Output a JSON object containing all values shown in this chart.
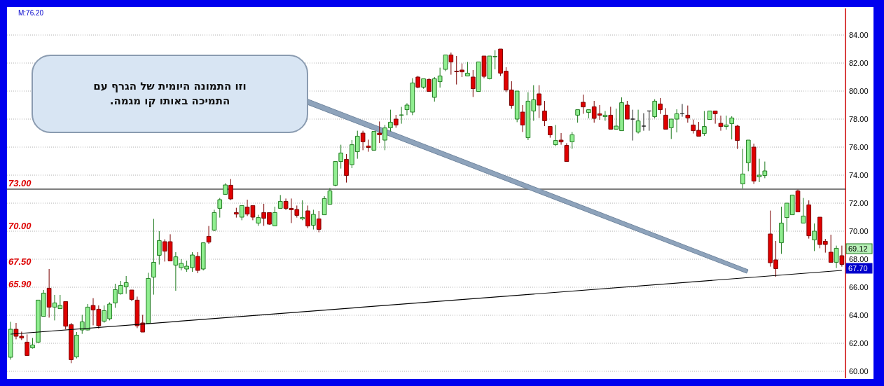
{
  "chart_data": {
    "type": "candlestick",
    "categories": [
      null,
      null,
      null,
      null,
      null,
      null,
      null,
      null,
      null,
      null,
      null,
      null,
      null,
      null,
      null,
      null,
      null,
      null,
      null,
      null,
      null,
      null,
      null,
      null,
      null,
      null,
      null,
      null,
      null,
      null,
      null,
      null,
      null,
      null,
      null,
      null,
      null,
      null,
      null,
      null,
      null,
      null,
      null,
      null,
      null,
      null,
      null,
      null,
      null,
      null,
      null,
      null,
      null,
      null,
      null,
      null,
      null,
      null,
      null,
      null,
      null,
      null,
      null,
      null,
      null,
      null,
      null,
      null,
      null,
      null,
      null,
      null,
      null,
      null,
      null,
      null,
      null,
      null,
      null,
      null,
      null,
      null,
      null,
      null,
      null,
      null,
      null,
      null,
      null,
      null,
      null,
      null,
      null,
      null,
      null,
      null,
      null,
      null,
      null,
      null,
      null,
      null,
      null,
      null,
      null,
      null,
      null,
      null,
      null,
      null,
      null,
      null,
      null,
      null,
      null,
      null,
      null,
      null,
      null,
      null,
      null,
      null,
      null,
      null,
      null,
      null,
      null,
      null,
      null,
      null,
      null,
      null,
      null,
      null,
      null,
      null,
      null,
      null,
      null,
      null,
      null,
      null,
      null,
      null,
      null,
      null,
      null,
      null,
      null,
      null,
      null,
      null
    ],
    "ohlc": [
      [
        61.0,
        63.53,
        60.83,
        63.0
      ],
      [
        63.0,
        63.45,
        62.28,
        62.5
      ],
      [
        62.5,
        62.83,
        62.23,
        62.38
      ],
      [
        62.08,
        62.63,
        61.13,
        61.13
      ],
      [
        61.67,
        62.38,
        61.62,
        61.88
      ],
      [
        62.08,
        65.08,
        62.03,
        65.08
      ],
      [
        63.92,
        65.8,
        63.92,
        65.58
      ],
      [
        65.93,
        67.3,
        63.83,
        64.58
      ],
      [
        64.58,
        65.45,
        63.63,
        64.88
      ],
      [
        64.47,
        65.45,
        64.47,
        64.7
      ],
      [
        64.98,
        64.98,
        63.0,
        63.22
      ],
      [
        63.33,
        63.45,
        60.58,
        60.83
      ],
      [
        61.03,
        62.8,
        60.92,
        62.58
      ],
      [
        62.95,
        64.03,
        62.67,
        63.53
      ],
      [
        62.95,
        64.8,
        62.92,
        64.58
      ],
      [
        64.7,
        65.22,
        63.28,
        64.38
      ],
      [
        64.43,
        64.7,
        63.05,
        63.25
      ],
      [
        63.58,
        64.7,
        63.47,
        64.33
      ],
      [
        63.75,
        64.92,
        63.63,
        64.8
      ],
      [
        64.88,
        66.25,
        64.53,
        65.83
      ],
      [
        65.53,
        66.45,
        65.47,
        66.13
      ],
      [
        66.03,
        66.8,
        65.53,
        66.33
      ],
      [
        65.8,
        65.8,
        65.0,
        65.13
      ],
      [
        65.08,
        65.33,
        63.08,
        63.25
      ],
      [
        63.45,
        64.03,
        62.8,
        62.8
      ],
      [
        63.42,
        67.03,
        63.42,
        66.63
      ],
      [
        66.72,
        70.88,
        65.47,
        67.78
      ],
      [
        68.28,
        70.0,
        67.62,
        69.33
      ],
      [
        69.25,
        69.42,
        67.83,
        68.58
      ],
      [
        69.25,
        69.78,
        67.88,
        67.88
      ],
      [
        67.58,
        68.5,
        65.75,
        68.17
      ],
      [
        67.4,
        68.0,
        67.2,
        67.7
      ],
      [
        67.3,
        67.9,
        67.1,
        67.5
      ],
      [
        67.4,
        68.5,
        67.1,
        68.3
      ],
      [
        68.2,
        68.5,
        67.0,
        67.2
      ],
      [
        67.3,
        69.2,
        67.2,
        69.17
      ],
      [
        69.63,
        70.37,
        69.1,
        69.22
      ],
      [
        70.08,
        71.53,
        70.0,
        71.33
      ],
      [
        71.63,
        72.37,
        70.97,
        72.25
      ],
      [
        72.63,
        73.42,
        72.6,
        73.3
      ],
      [
        73.28,
        73.72,
        72.22,
        72.3
      ],
      [
        71.33,
        71.67,
        70.97,
        71.22
      ],
      [
        71.0,
        71.83,
        70.78,
        71.83
      ],
      [
        71.72,
        72.25,
        71.08,
        71.22
      ],
      [
        71.83,
        71.83,
        70.78,
        71.0
      ],
      [
        70.58,
        71.17,
        70.38,
        70.97
      ],
      [
        71.33,
        71.95,
        70.38,
        70.92
      ],
      [
        71.33,
        71.33,
        70.47,
        70.5
      ],
      [
        70.38,
        71.75,
        70.38,
        71.33
      ],
      [
        71.63,
        72.58,
        71.63,
        72.13
      ],
      [
        72.13,
        72.33,
        71.5,
        71.63
      ],
      [
        71.63,
        72.33,
        70.58,
        71.53
      ],
      [
        71.55,
        71.83,
        70.97,
        71.13
      ],
      [
        70.88,
        72.2,
        70.78,
        70.98
      ],
      [
        71.45,
        71.83,
        70.22,
        70.37
      ],
      [
        70.42,
        71.53,
        70.12,
        71.2
      ],
      [
        70.88,
        71.45,
        69.92,
        70.13
      ],
      [
        71.17,
        72.5,
        71.17,
        72.33
      ],
      [
        71.92,
        73.08,
        71.92,
        72.88
      ],
      [
        73.28,
        74.97,
        73.2,
        74.97
      ],
      [
        74.97,
        76.17,
        74.47,
        75.58
      ],
      [
        75.13,
        75.5,
        73.47,
        73.97
      ],
      [
        74.75,
        76.5,
        74.5,
        76.17
      ],
      [
        75.67,
        77.17,
        75.17,
        76.78
      ],
      [
        77.0,
        77.17,
        75.78,
        76.38
      ],
      [
        76.08,
        76.53,
        75.67,
        75.97
      ],
      [
        75.78,
        77.12,
        75.78,
        77.12
      ],
      [
        77.0,
        77.83,
        76.3,
        76.88
      ],
      [
        76.5,
        77.58,
        75.78,
        77.37
      ],
      [
        77.38,
        78.67,
        77.12,
        77.78
      ],
      [
        78.0,
        78.3,
        77.38,
        77.58
      ],
      [
        78.28,
        78.87,
        77.67,
        78.3
      ],
      [
        78.67,
        79.13,
        78.28,
        79.0
      ],
      [
        78.5,
        80.92,
        78.28,
        80.58
      ],
      [
        81.0,
        81.08,
        80.2,
        80.28
      ],
      [
        80.28,
        80.88,
        80.17,
        80.88
      ],
      [
        80.83,
        80.92,
        79.97,
        79.97
      ],
      [
        79.55,
        81.0,
        79.25,
        80.88
      ],
      [
        80.67,
        81.67,
        80.25,
        81.08
      ],
      [
        81.55,
        82.58,
        81.42,
        82.58
      ],
      [
        82.58,
        82.75,
        81.17,
        82.08
      ],
      [
        81.42,
        82.5,
        80.47,
        81.38
      ],
      [
        81.5,
        81.97,
        81.0,
        81.37
      ],
      [
        81.08,
        82.08,
        81.05,
        81.28
      ],
      [
        81.0,
        81.5,
        79.58,
        80.17
      ],
      [
        79.97,
        82.08,
        79.97,
        82.08
      ],
      [
        82.5,
        82.5,
        80.92,
        81.05
      ],
      [
        80.88,
        82.5,
        80.83,
        82.5
      ],
      [
        82.45,
        82.92,
        81.55,
        82.47
      ],
      [
        83.0,
        83.0,
        81.08,
        81.28
      ],
      [
        81.42,
        81.7,
        79.92,
        80.08
      ],
      [
        80.08,
        80.7,
        78.75,
        78.97
      ],
      [
        78.0,
        80.0,
        77.78,
        80.0
      ],
      [
        78.5,
        79.0,
        77.08,
        77.58
      ],
      [
        76.67,
        79.92,
        76.5,
        79.28
      ],
      [
        78.58,
        80.42,
        77.88,
        79.38
      ],
      [
        79.8,
        80.42,
        78.08,
        79.0
      ],
      [
        78.58,
        79.3,
        77.5,
        77.88
      ],
      [
        77.47,
        77.47,
        76.67,
        76.88
      ],
      [
        76.17,
        77.58,
        76.08,
        76.47
      ],
      [
        76.5,
        77.0,
        76.17,
        76.37
      ],
      [
        76.12,
        76.28,
        74.97,
        74.97
      ],
      [
        76.38,
        77.08,
        75.88,
        76.88
      ],
      [
        78.28,
        78.67,
        77.75,
        78.67
      ],
      [
        79.2,
        79.75,
        78.38,
        78.87
      ],
      [
        78.47,
        78.67,
        78.05,
        78.67
      ],
      [
        78.88,
        79.3,
        77.75,
        78.05
      ],
      [
        78.38,
        79.0,
        77.95,
        78.28
      ],
      [
        78.17,
        78.58,
        77.88,
        78.28
      ],
      [
        78.28,
        78.88,
        77.28,
        77.28
      ],
      [
        77.28,
        78.75,
        77.28,
        77.5
      ],
      [
        77.17,
        79.55,
        77.17,
        79.17
      ],
      [
        79.0,
        79.3,
        78.0,
        78.0
      ],
      [
        78.0,
        78.67,
        76.47,
        78.0
      ],
      [
        77.08,
        78.67,
        76.97,
        77.87
      ],
      [
        77.5,
        78.42,
        77.17,
        77.5
      ],
      [
        78.58,
        78.58,
        77.17,
        78.58
      ],
      [
        78.17,
        79.42,
        78.05,
        79.28
      ],
      [
        79.08,
        79.5,
        78.37,
        78.67
      ],
      [
        78.28,
        78.78,
        77.28,
        77.28
      ],
      [
        77.38,
        78.0,
        76.58,
        78.0
      ],
      [
        78.0,
        78.7,
        77.05,
        78.38
      ],
      [
        78.38,
        79.08,
        78.17,
        78.38
      ],
      [
        78.28,
        78.97,
        77.75,
        78.08
      ],
      [
        77.58,
        77.97,
        76.97,
        77.17
      ],
      [
        77.2,
        77.8,
        76.78,
        76.78
      ],
      [
        76.97,
        78.58,
        76.8,
        77.47
      ],
      [
        77.97,
        78.58,
        77.97,
        78.58
      ],
      [
        78.58,
        78.58,
        77.67,
        78.38
      ],
      [
        77.7,
        78.25,
        77.17,
        77.47
      ],
      [
        77.47,
        78.25,
        77.25,
        77.58
      ],
      [
        77.67,
        78.2,
        76.55,
        78.08
      ],
      [
        77.5,
        77.58,
        75.87,
        76.47
      ],
      [
        73.38,
        75.88,
        73.05,
        74.08
      ],
      [
        74.88,
        76.5,
        74.28,
        76.5
      ],
      [
        76.0,
        76.25,
        73.37,
        73.58
      ],
      [
        73.88,
        75.17,
        73.5,
        74.0
      ],
      [
        73.97,
        74.97,
        73.78,
        74.3
      ],
      [
        69.8,
        71.47,
        67.47,
        67.75
      ],
      [
        67.95,
        69.3,
        66.75,
        67.33
      ],
      [
        69.17,
        71.75,
        68.38,
        70.58
      ],
      [
        70.97,
        72.0,
        69.97,
        72.0
      ],
      [
        71.17,
        72.58,
        71.17,
        72.58
      ],
      [
        72.88,
        72.97,
        71.38,
        71.38
      ],
      [
        70.58,
        72.37,
        70.58,
        71.08
      ],
      [
        71.88,
        72.2,
        69.47,
        69.67
      ],
      [
        69.38,
        70.55,
        68.58,
        70.0
      ],
      [
        71.0,
        71.0,
        68.78,
        69.05
      ],
      [
        69.28,
        69.45,
        68.47,
        69.05
      ],
      [
        68.5,
        69.75,
        67.78,
        67.78
      ],
      [
        67.78,
        68.97,
        67.37,
        68.78
      ],
      [
        68.25,
        68.97,
        67.47,
        67.63
      ]
    ],
    "series": [
      {
        "type": "line",
        "values": [
          62.65,
          null,
          null,
          null,
          null,
          null,
          null,
          null,
          null,
          null,
          null,
          null,
          null,
          null,
          null,
          null,
          null,
          null,
          null,
          null,
          null,
          null,
          null,
          null,
          null,
          null,
          null,
          null,
          null,
          null,
          null,
          null,
          null,
          null,
          null,
          null,
          null,
          null,
          null,
          null,
          null,
          null,
          null,
          null,
          null,
          null,
          null,
          null,
          null,
          null,
          null,
          null,
          null,
          null,
          null,
          null,
          null,
          null,
          null,
          null,
          null,
          null,
          null,
          null,
          null,
          null,
          null,
          null,
          null,
          null,
          null,
          null,
          null,
          null,
          null,
          null,
          null,
          null,
          null,
          null,
          null,
          null,
          null,
          null,
          null,
          null,
          null,
          null,
          null,
          null,
          null,
          null,
          null,
          null,
          null,
          null,
          null,
          null,
          null,
          null,
          null,
          null,
          null,
          null,
          null,
          null,
          null,
          null,
          null,
          null,
          null,
          null,
          null,
          null,
          null,
          null,
          null,
          null,
          null,
          null,
          null,
          null,
          null,
          null,
          null,
          null,
          null,
          null,
          null,
          null,
          null,
          null,
          null,
          null,
          null,
          null,
          null,
          null,
          null,
          null,
          null,
          null,
          null,
          null,
          null,
          null,
          null,
          null,
          null,
          null,
          null,
          67.2
        ],
        "color": "#000000"
      }
    ],
    "ylim": [
      59.5,
      85.9
    ],
    "yticks": [
      {
        "value": 60,
        "label": "60.00"
      },
      {
        "value": 62,
        "label": "62.00"
      },
      {
        "value": 64,
        "label": "64.00"
      },
      {
        "value": 66,
        "label": "66.00"
      },
      {
        "value": 68,
        "label": "68.00"
      },
      {
        "value": 70,
        "label": "70.00"
      },
      {
        "value": 72,
        "label": "72.00"
      },
      {
        "value": 74,
        "label": "74.00"
      },
      {
        "value": 76,
        "label": "76.00"
      },
      {
        "value": 78,
        "label": "78.00"
      },
      {
        "value": 80,
        "label": "80.00"
      },
      {
        "value": 82,
        "label": "82.00"
      },
      {
        "value": 84,
        "label": "84.00"
      }
    ],
    "grid": "y",
    "ref_lines": [
      {
        "axis": "y",
        "value": 73,
        "label": "73.00",
        "color": "#000000"
      }
    ],
    "annotations": [
      "M:76.20",
      "וזו התמונה היומית של הגרף עם התמיכה באותו קו מגמה.",
      "70.00",
      "67.50",
      "65.90",
      "69.12",
      "67.70"
    ]
  }
}
